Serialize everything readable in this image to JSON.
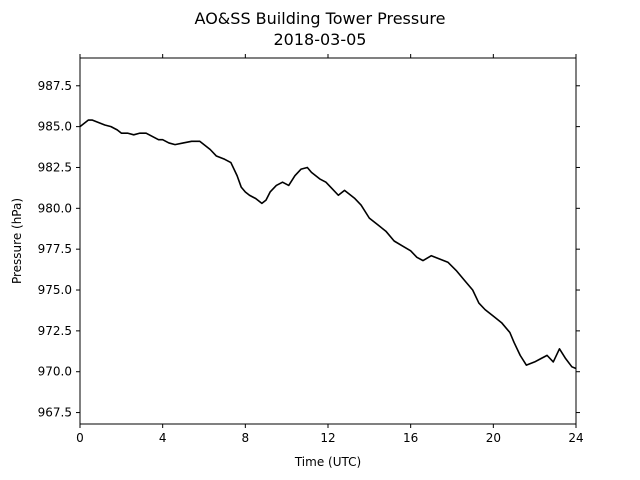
{
  "chart_data": {
    "type": "line",
    "title": "AO&SS Building Tower Pressure",
    "subtitle": "2018-03-05",
    "xlabel": "Time (UTC)",
    "ylabel": "Pressure (hPa)",
    "xlim": [
      0,
      24
    ],
    "ylim": [
      966.8,
      989.2
    ],
    "xticks": [
      0,
      4,
      8,
      12,
      16,
      20,
      24
    ],
    "yticks": [
      967.5,
      970.0,
      972.5,
      975.0,
      977.5,
      980.0,
      982.5,
      985.0,
      987.5
    ],
    "ytick_labels": [
      "967.5",
      "970.0",
      "972.5",
      "975.0",
      "977.5",
      "980.0",
      "982.5",
      "985.0",
      "987.5"
    ],
    "grid": false,
    "line_color": "#000000",
    "series": [
      {
        "x": [
          0,
          0.2,
          0.4,
          0.6,
          0.8,
          1.0,
          1.2,
          1.5,
          1.8,
          2.0,
          2.3,
          2.6,
          2.9,
          3.2,
          3.5,
          3.8,
          4.0,
          4.3,
          4.6,
          5.0,
          5.4,
          5.8,
          6.0,
          6.3,
          6.6,
          7.0,
          7.3,
          7.6,
          7.8,
          8.0,
          8.2,
          8.5,
          8.8,
          9.0,
          9.2,
          9.5,
          9.8,
          10.1,
          10.4,
          10.7,
          11.0,
          11.2,
          11.4,
          11.6,
          11.9,
          12.2,
          12.5,
          12.8,
          13.0,
          13.3,
          13.6,
          14.0,
          14.4,
          14.8,
          15.2,
          15.6,
          16.0,
          16.3,
          16.6,
          17.0,
          17.4,
          17.8,
          18.2,
          18.6,
          19.0,
          19.3,
          19.6,
          20.0,
          20.4,
          20.8,
          21.0,
          21.3,
          21.6,
          22.0,
          22.3,
          22.6,
          22.9,
          23.2,
          23.5,
          23.8,
          24.0
        ],
        "y": [
          985.0,
          985.2,
          985.4,
          985.4,
          985.3,
          985.2,
          985.1,
          985.0,
          984.8,
          984.6,
          984.6,
          984.5,
          984.6,
          984.6,
          984.4,
          984.2,
          984.2,
          984.0,
          983.9,
          984.0,
          984.1,
          984.1,
          983.9,
          983.6,
          983.2,
          983.0,
          982.8,
          982.0,
          981.3,
          981.0,
          980.8,
          980.6,
          980.3,
          980.5,
          981.0,
          981.4,
          981.6,
          981.4,
          982.0,
          982.4,
          982.5,
          982.2,
          982.0,
          981.8,
          981.6,
          981.2,
          980.8,
          981.1,
          980.9,
          980.6,
          980.2,
          979.4,
          979.0,
          978.6,
          978.0,
          977.7,
          977.4,
          977.0,
          976.8,
          977.1,
          976.9,
          976.7,
          976.2,
          975.6,
          975.0,
          974.2,
          973.8,
          973.4,
          973.0,
          972.4,
          971.8,
          971.0,
          970.4,
          970.6,
          970.8,
          971.0,
          970.6,
          971.4,
          970.8,
          970.3,
          970.2
        ]
      }
    ]
  }
}
